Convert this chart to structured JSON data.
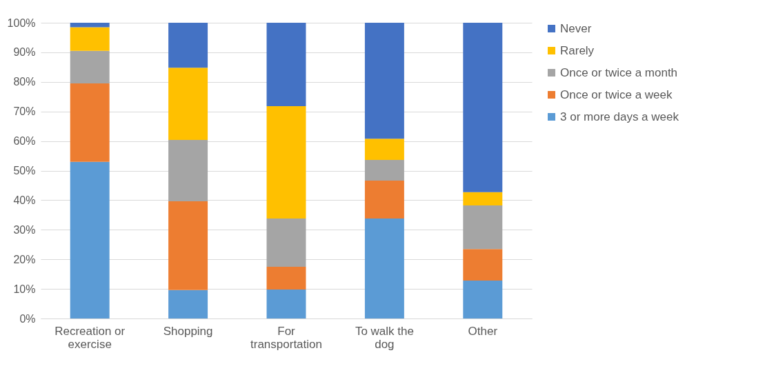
{
  "chart_data": {
    "type": "bar",
    "stacked": true,
    "categories": [
      "Recreation or exercise",
      "Shopping",
      "For transportation",
      "To walk the dog",
      "Other"
    ],
    "series": [
      {
        "name": "3 or more days a week",
        "color": "#5b9bd5",
        "values": [
          53,
          9.6,
          9.8,
          33.8,
          12.8
        ]
      },
      {
        "name": "Once or twice a week",
        "color": "#ed7d31",
        "values": [
          26.5,
          30,
          7.7,
          12.8,
          10.7
        ]
      },
      {
        "name": "Once or twice a month",
        "color": "#a5a5a5",
        "values": [
          11,
          20.8,
          16.3,
          7,
          14.7
        ]
      },
      {
        "name": "Rarely",
        "color": "#ffc000",
        "values": [
          8,
          24.4,
          38,
          7.2,
          4.5
        ]
      },
      {
        "name": "Never",
        "color": "#4472c4",
        "values": [
          1.5,
          15.2,
          28.2,
          39.2,
          57.3
        ]
      }
    ],
    "ylim": [
      0,
      100
    ],
    "yticks": [
      {
        "value": 0,
        "label": "0%"
      },
      {
        "value": 10,
        "label": "10%"
      },
      {
        "value": 20,
        "label": "20%"
      },
      {
        "value": 30,
        "label": "30%"
      },
      {
        "value": 40,
        "label": "40%"
      },
      {
        "value": 50,
        "label": "50%"
      },
      {
        "value": 60,
        "label": "60%"
      },
      {
        "value": 70,
        "label": "70%"
      },
      {
        "value": 80,
        "label": "80%"
      },
      {
        "value": 90,
        "label": "90%"
      },
      {
        "value": 100,
        "label": "100%"
      }
    ],
    "grid": "y",
    "legend": "right"
  }
}
